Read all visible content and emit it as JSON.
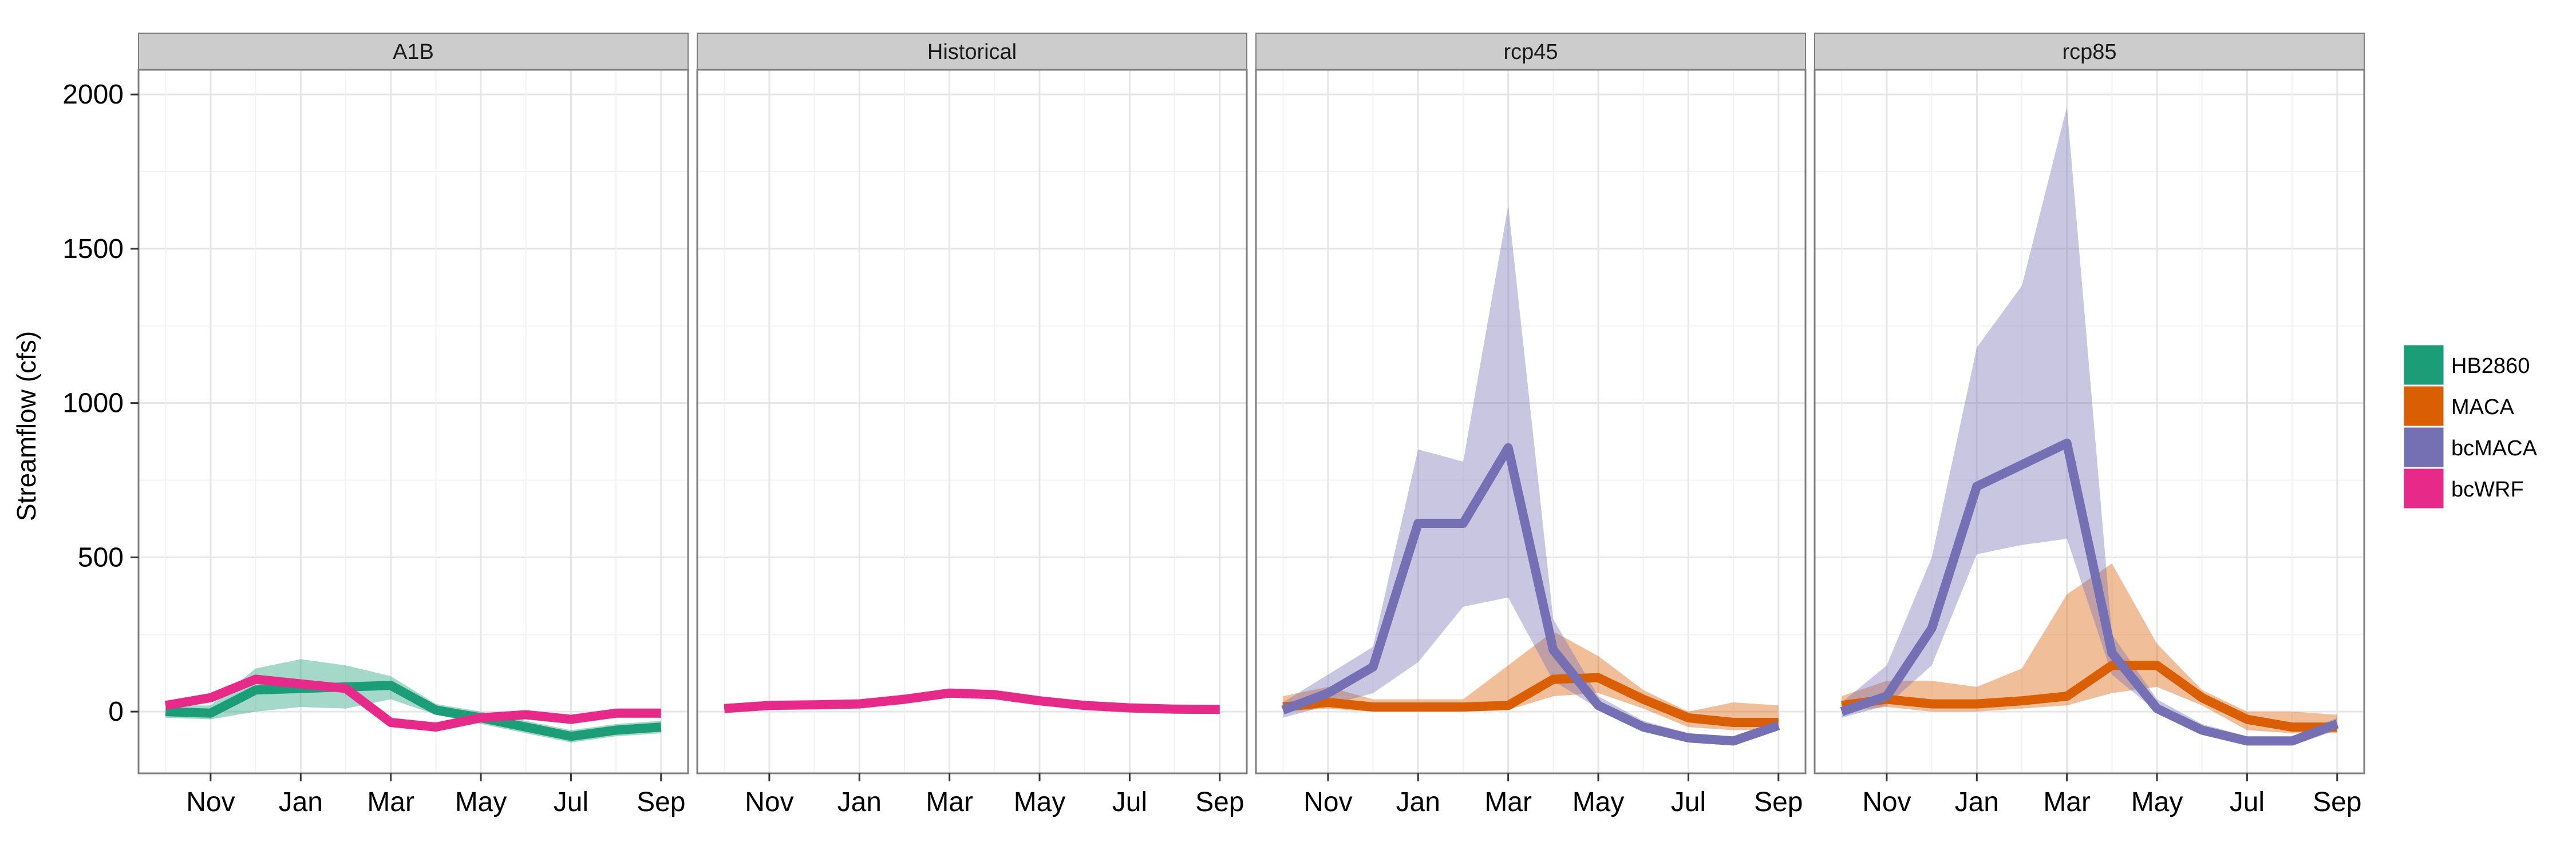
{
  "chart_data": {
    "type": "line",
    "ylabel": "Streamflow (cfs)",
    "xlabel": "",
    "x_ticks": [
      "Nov",
      "Jan",
      "Mar",
      "May",
      "Jul",
      "Sep"
    ],
    "y_ticks": [
      0,
      500,
      1000,
      1500,
      2000
    ],
    "ylim": [
      -200,
      2080
    ],
    "months": [
      "Oct",
      "Nov",
      "Dec",
      "Jan",
      "Feb",
      "Mar",
      "Apr",
      "May",
      "Jun",
      "Jul",
      "Aug",
      "Sep"
    ],
    "colors": {
      "HB2860": "#1b9e77",
      "MACA": "#d95f02",
      "bcMACA": "#7570b3",
      "bcWRF": "#e7298a"
    },
    "legend": {
      "position": "right",
      "entries": [
        "HB2860",
        "MACA",
        "bcMACA",
        "bcWRF"
      ]
    },
    "panels": [
      {
        "title": "A1B",
        "series": [
          {
            "name": "HB2860",
            "values": [
              0,
              -5,
              70,
              75,
              80,
              85,
              5,
              -20,
              -50,
              -80,
              -60,
              -50
            ],
            "lower": [
              -20,
              -25,
              0,
              15,
              10,
              40,
              -10,
              -40,
              -70,
              -100,
              -80,
              -70
            ],
            "upper": [
              20,
              20,
              140,
              170,
              150,
              115,
              25,
              0,
              -30,
              -60,
              -40,
              -30
            ]
          },
          {
            "name": "bcWRF",
            "values": [
              20,
              45,
              105,
              90,
              75,
              -35,
              -50,
              -20,
              -10,
              -25,
              -5,
              -5
            ]
          }
        ]
      },
      {
        "title": "Historical",
        "series": [
          {
            "name": "bcWRF",
            "values": [
              10,
              20,
              22,
              25,
              40,
              60,
              55,
              35,
              20,
              12,
              8,
              7
            ]
          }
        ]
      },
      {
        "title": "rcp45",
        "series": [
          {
            "name": "MACA",
            "values": [
              15,
              30,
              15,
              15,
              15,
              20,
              105,
              110,
              40,
              -20,
              -35,
              -35
            ],
            "lower": [
              0,
              10,
              0,
              0,
              0,
              5,
              50,
              60,
              10,
              -50,
              -60,
              -60
            ],
            "upper": [
              50,
              80,
              40,
              40,
              40,
              150,
              260,
              180,
              70,
              0,
              30,
              20
            ]
          },
          {
            "name": "bcMACA",
            "values": [
              5,
              60,
              145,
              610,
              610,
              855,
              200,
              20,
              -50,
              -85,
              -95,
              -45
            ],
            "lower": [
              -20,
              20,
              60,
              160,
              340,
              370,
              100,
              10,
              -60,
              -100,
              -110,
              -60
            ],
            "upper": [
              30,
              120,
              210,
              850,
              810,
              1640,
              300,
              50,
              -30,
              -70,
              -80,
              -30
            ]
          }
        ]
      },
      {
        "title": "rcp85",
        "series": [
          {
            "name": "MACA",
            "values": [
              20,
              40,
              25,
              25,
              35,
              50,
              150,
              150,
              45,
              -25,
              -50,
              -50
            ],
            "lower": [
              0,
              15,
              0,
              0,
              10,
              20,
              60,
              80,
              20,
              -60,
              -70,
              -70
            ],
            "upper": [
              50,
              100,
              100,
              80,
              140,
              380,
              480,
              220,
              70,
              0,
              0,
              -10
            ]
          },
          {
            "name": "bcMACA",
            "values": [
              0,
              50,
              270,
              730,
              800,
              870,
              190,
              10,
              -60,
              -95,
              -95,
              -40
            ],
            "lower": [
              -20,
              20,
              150,
              510,
              540,
              560,
              120,
              0,
              -70,
              -110,
              -110,
              -60
            ],
            "upper": [
              30,
              150,
              500,
              1180,
              1380,
              1960,
              250,
              40,
              -40,
              -80,
              -80,
              -20
            ]
          }
        ]
      }
    ]
  }
}
